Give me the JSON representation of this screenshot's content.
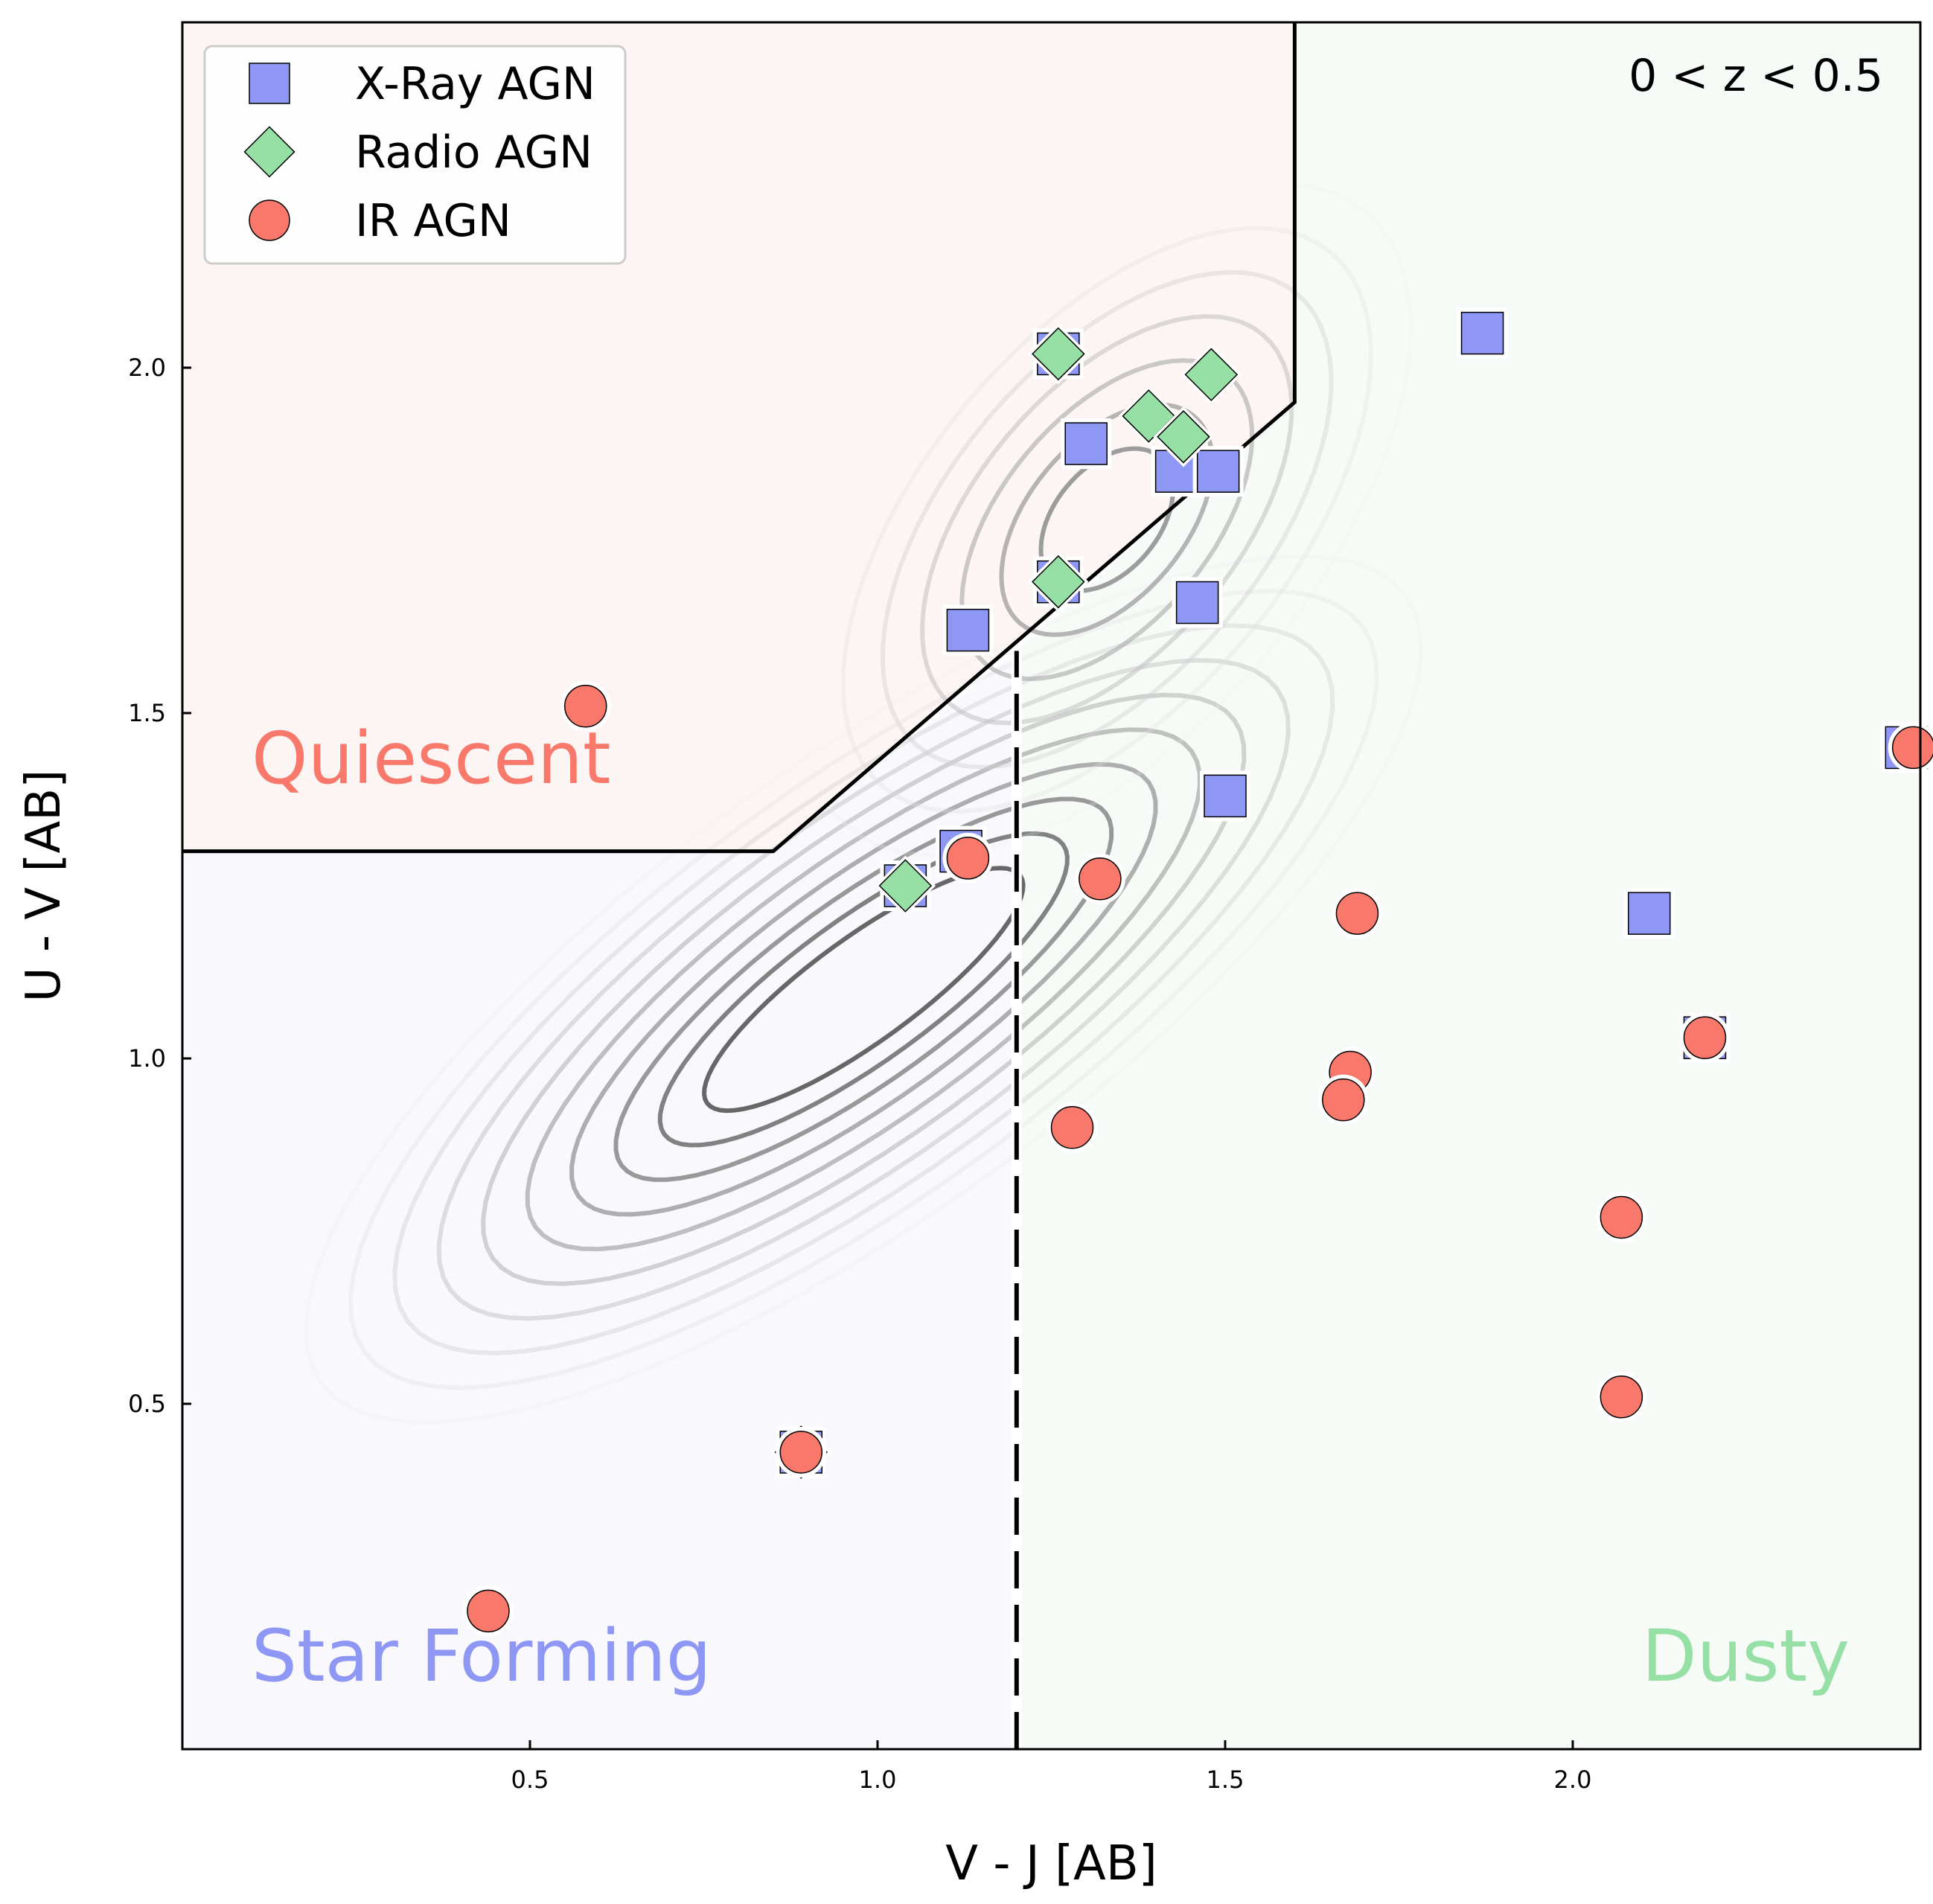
{
  "chart_data": {
    "type": "scatter",
    "title": "",
    "xlabel": "V - J [AB]",
    "ylabel": "U - V [AB]",
    "xlim": [
      0.0,
      2.5
    ],
    "ylim": [
      0.0,
      2.5
    ],
    "x_ticks": [
      "0.5",
      "1.0",
      "1.5",
      "2.0"
    ],
    "y_ticks": [
      "0.5",
      "1.0",
      "1.5",
      "2.0"
    ],
    "annotation": "0 < z < 0.5",
    "legend_position": "top-left",
    "grid": false,
    "regions": {
      "quiescent": {
        "label": "Quiescent",
        "color": "#f8786b",
        "fill": "#fdf5f3"
      },
      "star_forming": {
        "label": "Star Forming",
        "color": "#8f97f4",
        "fill": "#f8f8fd"
      },
      "dusty": {
        "label": "Dusty",
        "color": "#96e0a6",
        "fill": "#f7fbf7"
      }
    },
    "boundaries": {
      "quiescent_wedge": [
        [
          0.0,
          1.3
        ],
        [
          0.85,
          1.3
        ],
        [
          1.6,
          1.95
        ],
        [
          1.6,
          2.5
        ]
      ],
      "dusty_split": [
        [
          1.2,
          0.0
        ],
        [
          1.2,
          1.59
        ]
      ]
    },
    "series": [
      {
        "name": "X-Ray AGN",
        "marker": "square",
        "color": "#8f97f4",
        "points": [
          [
            1.26,
            2.02
          ],
          [
            1.3,
            1.89
          ],
          [
            1.43,
            1.85
          ],
          [
            1.49,
            1.85
          ],
          [
            1.26,
            1.69
          ],
          [
            1.13,
            1.62
          ],
          [
            1.46,
            1.66
          ],
          [
            1.5,
            1.38
          ],
          [
            1.12,
            1.3
          ],
          [
            1.04,
            1.25
          ],
          [
            0.89,
            0.43
          ],
          [
            1.87,
            2.05
          ],
          [
            2.11,
            1.21
          ],
          [
            2.19,
            1.03
          ],
          [
            2.48,
            1.45
          ]
        ]
      },
      {
        "name": "Radio AGN",
        "marker": "diamond",
        "color": "#96e0a6",
        "points": [
          [
            1.26,
            2.02
          ],
          [
            1.48,
            1.99
          ],
          [
            1.39,
            1.93
          ],
          [
            1.44,
            1.9
          ],
          [
            1.26,
            1.69
          ],
          [
            1.04,
            1.25
          ],
          [
            0.89,
            0.43
          ]
        ]
      },
      {
        "name": "IR AGN",
        "marker": "circle",
        "color": "#f8786b",
        "points": [
          [
            0.58,
            1.51
          ],
          [
            1.13,
            1.29
          ],
          [
            1.32,
            1.26
          ],
          [
            1.69,
            1.21
          ],
          [
            1.68,
            0.98
          ],
          [
            1.67,
            0.94
          ],
          [
            1.28,
            0.9
          ],
          [
            2.07,
            0.77
          ],
          [
            2.07,
            0.51
          ],
          [
            2.19,
            1.03
          ],
          [
            2.49,
            1.45
          ],
          [
            0.89,
            0.43
          ],
          [
            0.44,
            0.2
          ]
        ]
      }
    ]
  }
}
